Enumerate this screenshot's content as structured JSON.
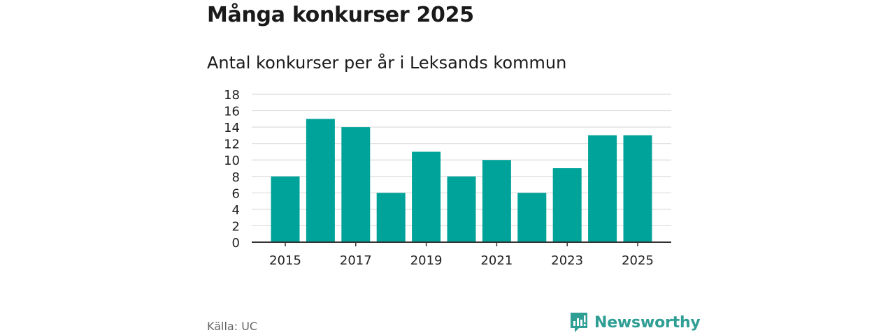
{
  "title": "Många konkurser 2025",
  "subtitle": "Antal konkurser per år i Leksands kommun",
  "source": "Källa: UC",
  "brand": {
    "name": "Newsworthy",
    "icon": "newsworthy-logo-icon",
    "color": "#2f9e94"
  },
  "colors": {
    "bar": "#00a39a",
    "grid": "#dddddd",
    "axis": "#333333"
  },
  "chart_data": {
    "type": "bar",
    "title": "Många konkurser 2025",
    "subtitle": "Antal konkurser per år i Leksands kommun",
    "categories": [
      "2015",
      "2016",
      "2017",
      "2018",
      "2019",
      "2020",
      "2021",
      "2022",
      "2023",
      "2024",
      "2025"
    ],
    "values": [
      8,
      15,
      14,
      6,
      11,
      8,
      10,
      6,
      9,
      13,
      13
    ],
    "x_tick_labels": [
      "2015",
      "2017",
      "2019",
      "2021",
      "2023",
      "2025"
    ],
    "y_ticks": [
      "0",
      "2",
      "4",
      "6",
      "8",
      "10",
      "12",
      "14",
      "16",
      "18"
    ],
    "ylim": [
      0,
      18
    ],
    "xlabel": "",
    "ylabel": "",
    "grid": true
  }
}
